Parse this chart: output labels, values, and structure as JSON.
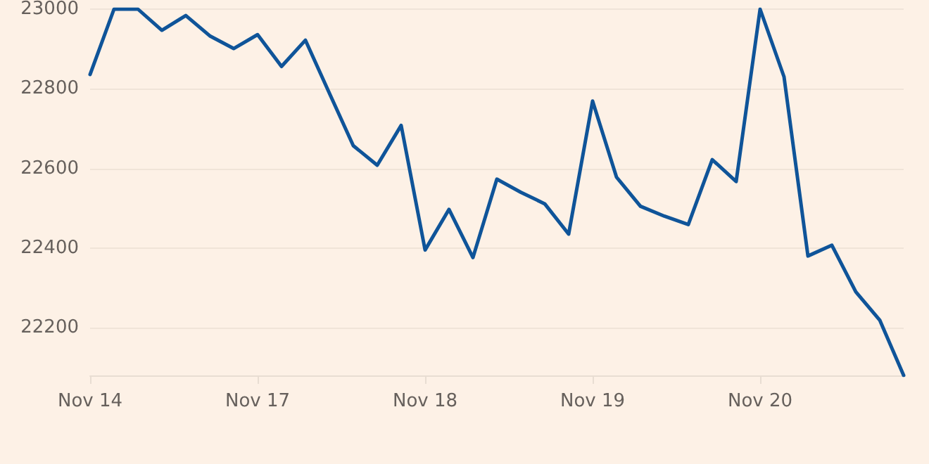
{
  "chart_data": {
    "type": "line",
    "categories": [
      "Nov 14",
      null,
      null,
      null,
      null,
      null,
      null,
      "Nov 17",
      null,
      null,
      null,
      null,
      null,
      null,
      "Nov 18",
      null,
      null,
      null,
      null,
      null,
      null,
      "Nov 19",
      null,
      null,
      null,
      null,
      null,
      null,
      "Nov 20",
      null,
      null,
      null,
      null,
      null,
      null
    ],
    "series": [
      {
        "color": "#0f5499",
        "values": [
          22836,
          23000,
          23000,
          22947,
          22984,
          22933,
          22901,
          22936,
          22856,
          22922,
          22789,
          22657,
          22608,
          22708,
          22395,
          22497,
          22376,
          22573,
          22540,
          22511,
          22435,
          22769,
          22578,
          22505,
          22480,
          22459,
          22622,
          22567,
          23000,
          22830,
          22380,
          22407,
          22290,
          22219,
          22080
        ]
      }
    ],
    "ylim": [
      22080,
      23000
    ],
    "yticks": [
      22200,
      22400,
      22600,
      22800,
      23000
    ],
    "grid": "y",
    "marker": "none",
    "line_style": "solid"
  }
}
